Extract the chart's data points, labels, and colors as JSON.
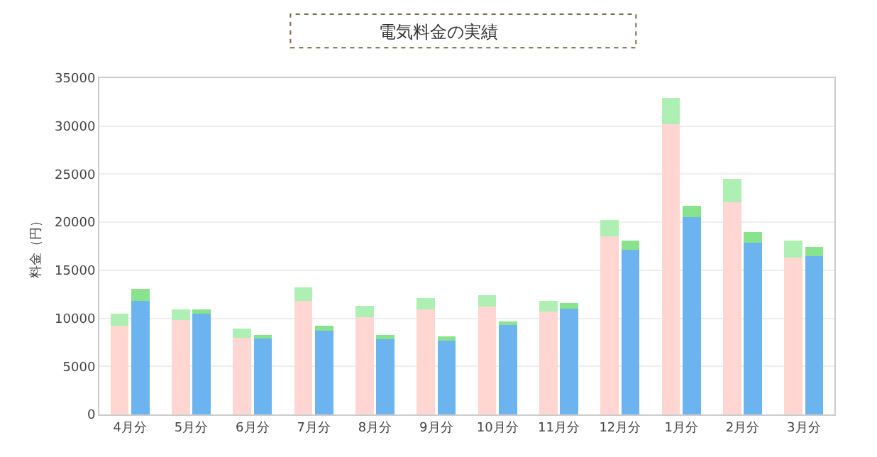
{
  "chart_data": [
    {
      "type": "bar",
      "title": "電気料金の実績",
      "ylabel": "料金（円）",
      "grid": "y",
      "stacked": true,
      "categories": [
        "4月分",
        "5月分",
        "6月分",
        "7月分",
        "8月分",
        "9月分",
        "10月分",
        "11月分",
        "12月分",
        "1月分",
        "2月分",
        "3月分"
      ],
      "ylim": [
        0,
        35000
      ],
      "yticks": [
        0,
        5000,
        10000,
        15000,
        20000,
        25000,
        30000,
        35000
      ],
      "series": [
        {
          "color": "#ffd6d2",
          "values": [
            9200,
            9800,
            8000,
            11800,
            10100,
            10900,
            11200,
            10700,
            18500,
            30200,
            22100,
            16300
          ]
        },
        {
          "color": "#aef0b4",
          "values": [
            1300,
            1100,
            900,
            1400,
            1200,
            1200,
            1200,
            1100,
            1700,
            2700,
            2400,
            1800
          ]
        }
      ]
    },
    {
      "type": "bar",
      "stacked": true,
      "categories": [
        null,
        null,
        null,
        null,
        null,
        null,
        null,
        null,
        null,
        null,
        null,
        null
      ],
      "ylim": [
        0,
        35000
      ],
      "series": [
        {
          "color": "#6cb4f0",
          "values": [
            11800,
            10500,
            7900,
            8700,
            7800,
            7700,
            9300,
            11000,
            17100,
            20500,
            17900,
            16500
          ]
        },
        {
          "color": "#88e38c",
          "values": [
            1300,
            400,
            400,
            500,
            500,
            400,
            400,
            600,
            1000,
            1200,
            1100,
            900
          ]
        }
      ]
    }
  ]
}
